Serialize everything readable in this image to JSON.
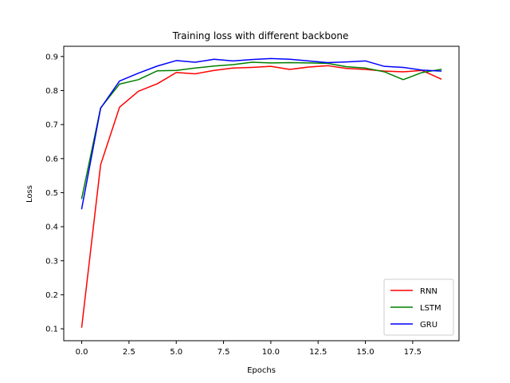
{
  "chart_data": {
    "type": "line",
    "title": "Training loss with different backbone",
    "xlabel": "Epochs",
    "ylabel": "Loss",
    "xlim": [
      -0.95,
      19.95
    ],
    "ylim": [
      0.065,
      0.93
    ],
    "x_ticks": [
      0.0,
      2.5,
      5.0,
      7.5,
      10.0,
      12.5,
      15.0,
      17.5
    ],
    "x_tick_labels": [
      "0.0",
      "2.5",
      "5.0",
      "7.5",
      "10.0",
      "12.5",
      "15.0",
      "17.5"
    ],
    "y_ticks": [
      0.1,
      0.2,
      0.3,
      0.4,
      0.5,
      0.6,
      0.7,
      0.8,
      0.9
    ],
    "y_tick_labels": [
      "0.1",
      "0.2",
      "0.3",
      "0.4",
      "0.5",
      "0.6",
      "0.7",
      "0.8",
      "0.9"
    ],
    "grid": false,
    "legend_position": "bottom-right",
    "x": [
      0,
      1,
      2,
      3,
      4,
      5,
      6,
      7,
      8,
      9,
      10,
      11,
      12,
      13,
      14,
      15,
      16,
      17,
      18,
      19
    ],
    "series": [
      {
        "name": "RNN",
        "color": "#ff0000",
        "values": [
          0.105,
          0.582,
          0.751,
          0.798,
          0.82,
          0.853,
          0.849,
          0.859,
          0.866,
          0.868,
          0.871,
          0.862,
          0.869,
          0.873,
          0.865,
          0.862,
          0.857,
          0.855,
          0.859,
          0.834
        ]
      },
      {
        "name": "LSTM",
        "color": "#008000",
        "values": [
          0.483,
          0.749,
          0.819,
          0.832,
          0.858,
          0.859,
          0.866,
          0.872,
          0.876,
          0.883,
          0.881,
          0.882,
          0.881,
          0.88,
          0.87,
          0.866,
          0.855,
          0.832,
          0.853,
          0.862
        ]
      },
      {
        "name": "GRU",
        "color": "#0000ff",
        "values": [
          0.453,
          0.748,
          0.828,
          0.851,
          0.872,
          0.888,
          0.883,
          0.892,
          0.887,
          0.891,
          0.894,
          0.892,
          0.887,
          0.882,
          0.884,
          0.887,
          0.871,
          0.868,
          0.86,
          0.857
        ]
      }
    ]
  }
}
